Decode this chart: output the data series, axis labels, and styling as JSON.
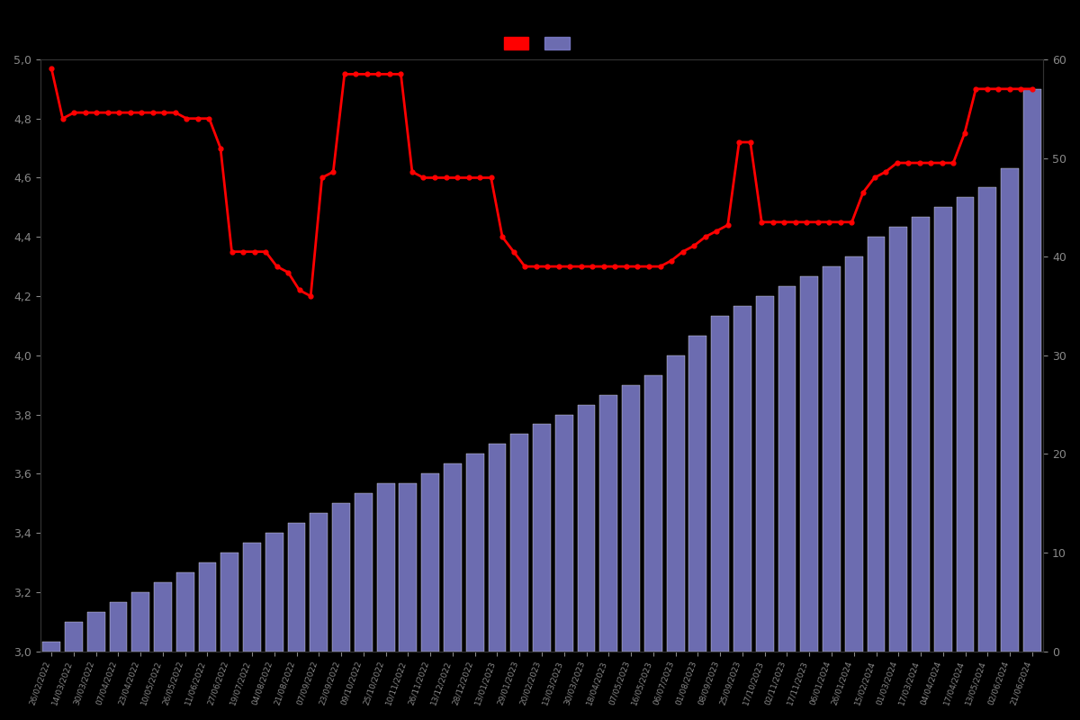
{
  "dates": [
    "26/02/2022",
    "14/03/2022",
    "30/03/2022",
    "07/04/2022",
    "23/04/2022",
    "10/05/2022",
    "26/05/2022",
    "11/06/2022",
    "27/06/2022",
    "19/07/2022",
    "04/08/2022",
    "21/08/2022",
    "07/09/2022",
    "23/09/2022",
    "09/10/2022",
    "25/10/2022",
    "10/11/2022",
    "26/11/2022",
    "13/12/2022",
    "28/12/2022",
    "13/01/2023",
    "29/01/2023",
    "20/02/2023",
    "13/03/2023",
    "30/03/2023",
    "18/04/2023",
    "07/05/2023",
    "16/05/2023",
    "06/07/2023",
    "01/08/2023",
    "08/09/2023",
    "25/09/2023",
    "17/10/2023",
    "02/11/2023",
    "17/11/2023",
    "06/01/2024",
    "26/01/2024",
    "15/02/2024",
    "01/03/2024",
    "17/03/2024",
    "04/04/2024",
    "17/04/2024",
    "13/05/2024",
    "02/06/2024",
    "21/06/2024"
  ],
  "review_counts": [
    1,
    3,
    4,
    5,
    6,
    7,
    8,
    9,
    10,
    11,
    12,
    13,
    14,
    15,
    16,
    17,
    17,
    18,
    19,
    20,
    21,
    22,
    23,
    24,
    25,
    26,
    27,
    28,
    30,
    32,
    34,
    35,
    36,
    37,
    38,
    39,
    40,
    42,
    43,
    44,
    45,
    46,
    47,
    49,
    57
  ],
  "rating_values": [
    4.97,
    4.8,
    4.82,
    4.82,
    4.82,
    4.82,
    4.82,
    4.82,
    4.82,
    4.82,
    4.82,
    4.82,
    4.8,
    4.8,
    4.8,
    4.7,
    4.35,
    4.35,
    4.35,
    4.35,
    4.3,
    4.28,
    4.22,
    4.2,
    4.6,
    4.62,
    4.95,
    4.95,
    4.95,
    4.95,
    4.95,
    4.95,
    4.62,
    4.6,
    4.6,
    4.6,
    4.6,
    4.6,
    4.6,
    4.6,
    4.4,
    4.35,
    4.3,
    4.3,
    4.3,
    4.3,
    4.3,
    4.3,
    4.3,
    4.3,
    4.3,
    4.3,
    4.3,
    4.3,
    4.3,
    4.32,
    4.35,
    4.37,
    4.4,
    4.42,
    4.44,
    4.72,
    4.72,
    4.45,
    4.45,
    4.45,
    4.45,
    4.45,
    4.45,
    4.45,
    4.45,
    4.45,
    4.55,
    4.6,
    4.62,
    4.65,
    4.65,
    4.65,
    4.65,
    4.65,
    4.65,
    4.75,
    4.9,
    4.9,
    4.9,
    4.9,
    4.9,
    4.9
  ],
  "bar_color": "#8080d0",
  "line_color": "#ff0000",
  "background_color": "#000000",
  "text_color": "#888888",
  "ylim_left": [
    3.0,
    5.0
  ],
  "ylim_right": [
    0,
    60
  ],
  "yticks_left": [
    3.0,
    3.2,
    3.4,
    3.6,
    3.8,
    4.0,
    4.2,
    4.4,
    4.6,
    4.8,
    5.0
  ],
  "yticks_right": [
    0,
    10,
    20,
    30,
    40,
    50,
    60
  ]
}
